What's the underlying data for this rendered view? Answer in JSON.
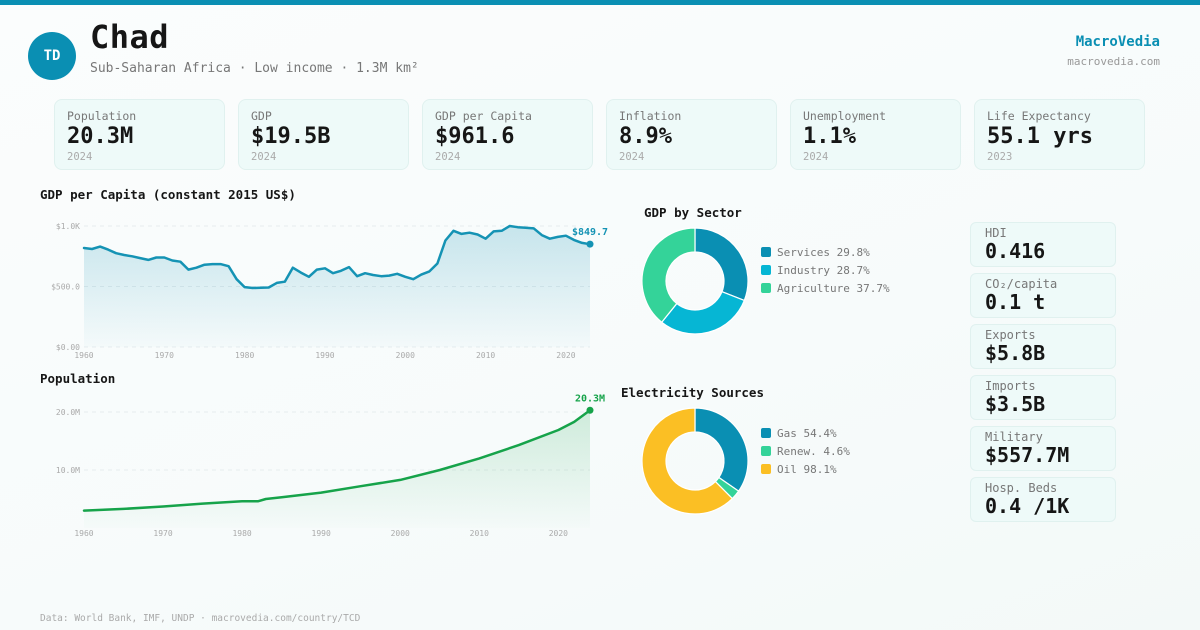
{
  "header": {
    "avatar_initials": "TD",
    "country": "Chad",
    "subtitle": "Sub-Saharan Africa · Low income · 1.3M km²",
    "brand": "MacroVedia",
    "brand_url": "macrovedia.com"
  },
  "colors": {
    "accent": "#0a8fb3",
    "gdp_line": "#1593b4",
    "population_line": "#16a34a",
    "services": "#0a8fb3",
    "industry": "#06b6d4",
    "agriculture": "#34d399",
    "gas": "#0a8fb3",
    "renewables": "#34d399",
    "oil": "#fbbf24"
  },
  "stats": [
    {
      "label": "Population",
      "value": "20.3M",
      "year": "2024"
    },
    {
      "label": "GDP",
      "value": "$19.5B",
      "year": "2024"
    },
    {
      "label": "GDP per Capita",
      "value": "$961.6",
      "year": "2024"
    },
    {
      "label": "Inflation",
      "value": "8.9%",
      "year": "2024"
    },
    {
      "label": "Unemployment",
      "value": "1.1%",
      "year": "2024"
    },
    {
      "label": "Life Expectancy",
      "value": "55.1 yrs",
      "year": "2023"
    }
  ],
  "side_stats": [
    {
      "label": "HDI",
      "value": "0.416"
    },
    {
      "label": "CO₂/capita",
      "value": "0.1 t"
    },
    {
      "label": "Exports",
      "value": "$5.8B"
    },
    {
      "label": "Imports",
      "value": "$3.5B"
    },
    {
      "label": "Military",
      "value": "$557.7M"
    },
    {
      "label": "Hosp. Beds",
      "value": "0.4 /1K"
    }
  ],
  "footer": "Data: World Bank, IMF, UNDP · macrovedia.com/country/TCD",
  "chart_data": [
    {
      "id": "gdp_per_capita",
      "type": "area",
      "title": "GDP per Capita (constant 2015 US$)",
      "xlabel": "",
      "ylabel": "",
      "x_ticks": [
        "1960",
        "1970",
        "1980",
        "1990",
        "2000",
        "2010",
        "2020"
      ],
      "y_ticks": [
        "$0.00",
        "$500.0",
        "$1.0K"
      ],
      "ylim": [
        0,
        1000
      ],
      "xlim": [
        1960,
        2023
      ],
      "grid": true,
      "end_label": "$849.7",
      "x": [
        1960,
        1961,
        1962,
        1963,
        1964,
        1965,
        1966,
        1967,
        1968,
        1969,
        1970,
        1971,
        1972,
        1973,
        1974,
        1975,
        1976,
        1977,
        1978,
        1979,
        1980,
        1981,
        1982,
        1983,
        1984,
        1985,
        1986,
        1987,
        1988,
        1989,
        1990,
        1991,
        1992,
        1993,
        1994,
        1995,
        1996,
        1997,
        1998,
        1999,
        2000,
        2001,
        2002,
        2003,
        2004,
        2005,
        2006,
        2007,
        2008,
        2009,
        2010,
        2011,
        2012,
        2013,
        2014,
        2015,
        2016,
        2017,
        2018,
        2019,
        2020,
        2021,
        2022,
        2023
      ],
      "values": [
        818,
        810,
        830,
        805,
        775,
        760,
        750,
        735,
        720,
        740,
        740,
        715,
        705,
        640,
        655,
        680,
        685,
        685,
        668,
        560,
        495,
        488,
        490,
        492,
        530,
        540,
        655,
        615,
        580,
        640,
        650,
        610,
        630,
        660,
        585,
        610,
        595,
        585,
        590,
        605,
        580,
        560,
        598,
        625,
        690,
        880,
        960,
        935,
        945,
        930,
        895,
        955,
        960,
        1000,
        990,
        985,
        980,
        925,
        895,
        910,
        920,
        885,
        860,
        850
      ]
    },
    {
      "id": "population",
      "type": "area",
      "title": "Population",
      "xlabel": "",
      "ylabel": "",
      "x_ticks": [
        "1960",
        "1970",
        "1980",
        "1990",
        "2000",
        "2010",
        "2020"
      ],
      "y_ticks": [
        "10.0M",
        "20.0M"
      ],
      "ylim": [
        0,
        20
      ],
      "xlim": [
        1960,
        2024
      ],
      "grid": true,
      "end_label": "20.3M",
      "x": [
        1960,
        1965,
        1970,
        1975,
        1980,
        1982,
        1983,
        1985,
        1990,
        1995,
        2000,
        2005,
        2010,
        2015,
        2020,
        2022,
        2024
      ],
      "values": [
        3.0,
        3.3,
        3.7,
        4.2,
        4.6,
        4.6,
        5.0,
        5.3,
        6.1,
        7.2,
        8.3,
        10.0,
        12.0,
        14.3,
        16.9,
        18.3,
        20.3
      ]
    },
    {
      "id": "gdp_by_sector",
      "type": "pie",
      "title": "GDP by Sector",
      "series": [
        {
          "name": "Services",
          "value": 29.8,
          "label": "Services 29.8%",
          "color_key": "services"
        },
        {
          "name": "Industry",
          "value": 28.7,
          "label": "Industry 28.7%",
          "color_key": "industry"
        },
        {
          "name": "Agriculture",
          "value": 37.7,
          "label": "Agriculture 37.7%",
          "color_key": "agriculture"
        }
      ]
    },
    {
      "id": "electricity_sources",
      "type": "pie",
      "title": "Electricity Sources",
      "series": [
        {
          "name": "Gas",
          "value": 54.4,
          "label": "Gas 54.4%",
          "color_key": "gas"
        },
        {
          "name": "Renew.",
          "value": 4.6,
          "label": "Renew. 4.6%",
          "color_key": "renewables"
        },
        {
          "name": "Oil",
          "value": 98.1,
          "label": "Oil 98.1%",
          "color_key": "oil"
        }
      ]
    }
  ]
}
